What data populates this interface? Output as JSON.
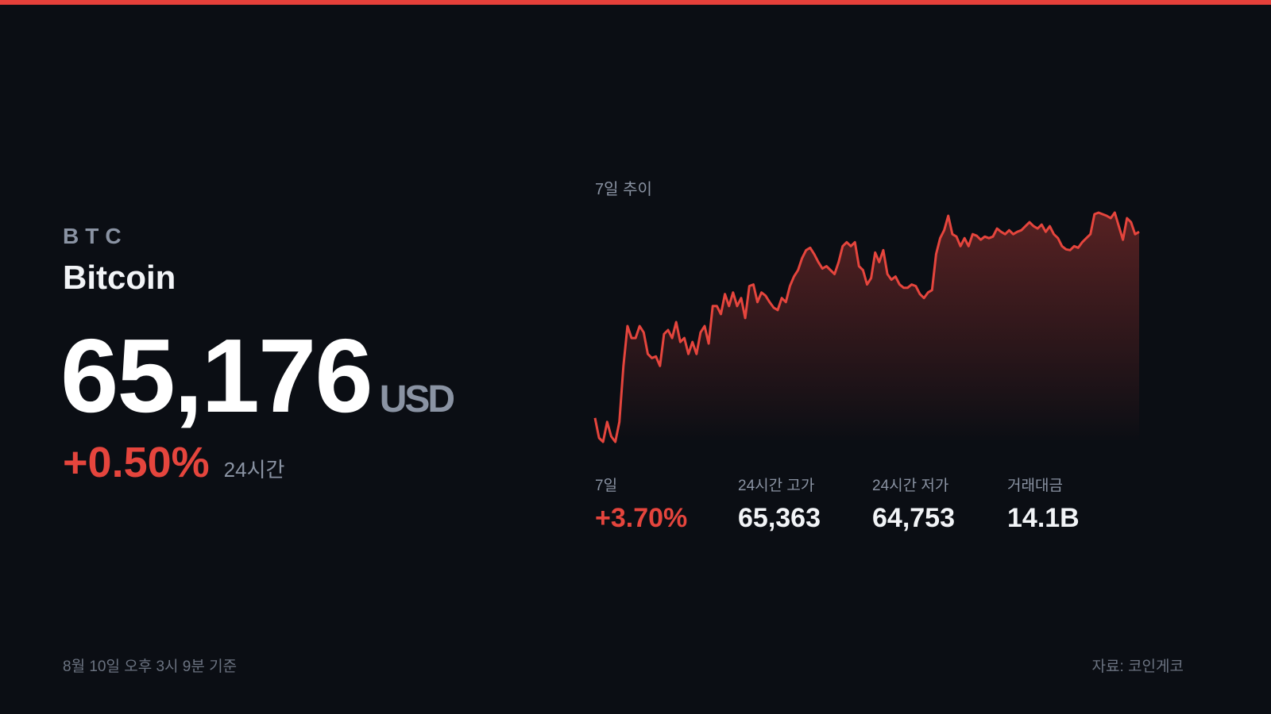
{
  "ticker": "BTC",
  "name": "Bitcoin",
  "price": "65,176",
  "currency": "USD",
  "change": "+0.50%",
  "change_period": "24시간",
  "stats": [
    {
      "label": "7일",
      "value": "+3.70%"
    },
    {
      "label": "24시간 고가",
      "value": "65,363"
    },
    {
      "label": "24시간 저가",
      "value": "64,753"
    },
    {
      "label": "거래대금",
      "value": "14.1B"
    }
  ],
  "footer": {
    "timestamp": "8월 10일 오후 3시 9분 기준",
    "source": "자료: 코인게코"
  },
  "chart_data": {
    "type": "line",
    "title": "7일 추이",
    "color": "#e5453d",
    "values": [
      62846,
      62596,
      62546,
      62796,
      62616,
      62546,
      62796,
      63496,
      63996,
      63846,
      63846,
      63996,
      63916,
      63646,
      63596,
      63616,
      63496,
      63896,
      63946,
      63846,
      64046,
      63796,
      63846,
      63646,
      63796,
      63646,
      63916,
      63996,
      63776,
      64246,
      64246,
      64146,
      64396,
      64246,
      64416,
      64246,
      64346,
      64096,
      64496,
      64516,
      64296,
      64416,
      64376,
      64296,
      64226,
      64196,
      64346,
      64296,
      64496,
      64616,
      64696,
      64846,
      64946,
      64976,
      64896,
      64796,
      64716,
      64746,
      64696,
      64646,
      64796,
      64996,
      65046,
      64996,
      65046,
      64746,
      64696,
      64516,
      64596,
      64916,
      64796,
      64946,
      64646,
      64576,
      64616,
      64516,
      64476,
      64476,
      64516,
      64496,
      64396,
      64346,
      64416,
      64446,
      64896,
      65096,
      65196,
      65376,
      65146,
      65116,
      64996,
      65096,
      64996,
      65146,
      65126,
      65076,
      65116,
      65096,
      65116,
      65216,
      65176,
      65146,
      65196,
      65146,
      65176,
      65196,
      65246,
      65296,
      65246,
      65216,
      65266,
      65176,
      65246,
      65146,
      65096,
      64996,
      64956,
      64946,
      64996,
      64976,
      65046,
      65096,
      65146,
      65396,
      65416,
      65396,
      65376,
      65346,
      65416,
      65246,
      65076,
      65346,
      65296,
      65146,
      65176
    ]
  }
}
